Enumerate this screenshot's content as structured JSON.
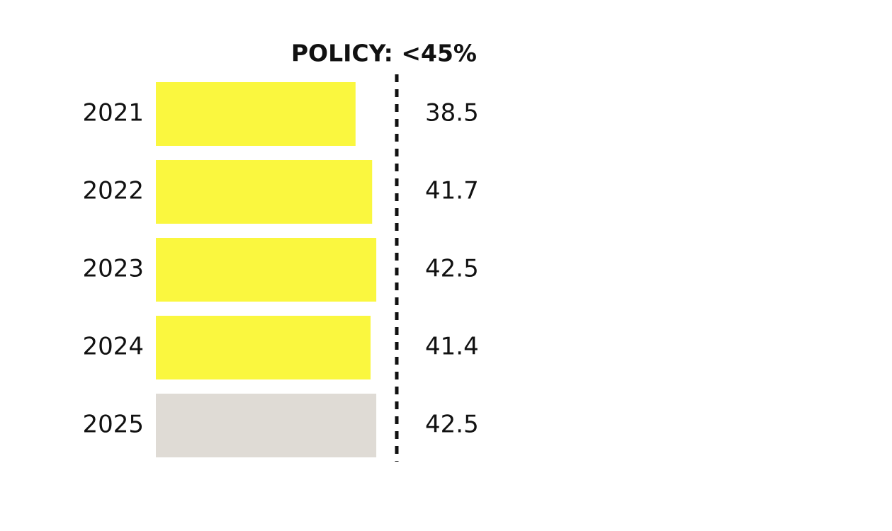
{
  "chart_data": {
    "type": "hbar",
    "annotation": "POLICY: <45%",
    "categories": [
      "2021",
      "2022",
      "2023",
      "2024",
      "2025"
    ],
    "values": [
      38.5,
      41.7,
      42.5,
      41.4,
      42.5
    ],
    "colors": [
      "#faf73f",
      "#faf73f",
      "#faf73f",
      "#faf73f",
      "#dfdbd5"
    ]
  }
}
